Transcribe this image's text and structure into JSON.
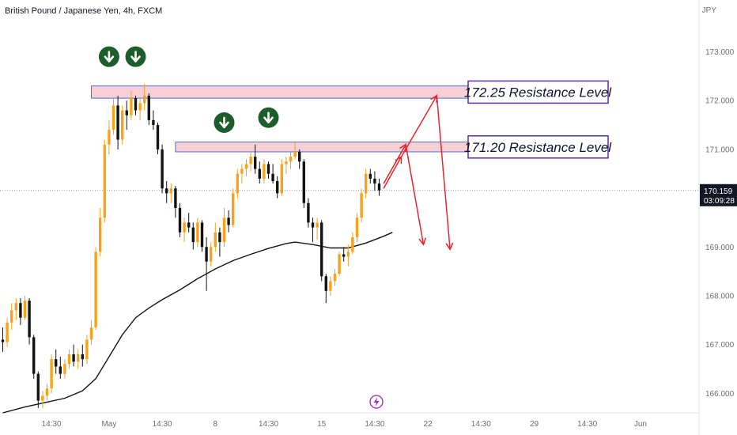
{
  "header": {
    "symbol_title": "British Pound / Japanese Yen, 4h, FXCM",
    "currency": "JPY"
  },
  "last_price": {
    "price": "170.159",
    "countdown": "03:09:28",
    "value": 170.159,
    "color": "#131722"
  },
  "colors": {
    "up": "#f7a21b",
    "down": "#131313",
    "moving_average": "#131313",
    "zone_fill": "#f8c7cf",
    "zone_border": "#4a6fe0",
    "projection": "#e5262d",
    "marker": "#1d5c2b",
    "label_border": "#5b2bb0",
    "lightning": "#9b27c4"
  },
  "chart_data": {
    "type": "candlestick",
    "title": "British Pound / Japanese Yen, 4h, FXCM",
    "ylabel": "JPY",
    "ylim": [
      165.6,
      173.9
    ],
    "y_ticks": [
      "166.000",
      "167.000",
      "168.000",
      "169.000",
      "170.000",
      "171.000",
      "172.000",
      "173.000"
    ],
    "y_tick_values": [
      166,
      167,
      168,
      169,
      170,
      171,
      172,
      173
    ],
    "x_ticks": [
      {
        "label": "14:30",
        "bar": 11
      },
      {
        "label": "May",
        "bar": 24
      },
      {
        "label": "14:30",
        "bar": 36
      },
      {
        "label": "8",
        "bar": 48
      },
      {
        "label": "14:30",
        "bar": 60
      },
      {
        "label": "15",
        "bar": 72
      },
      {
        "label": "14:30",
        "bar": 84
      },
      {
        "label": "22",
        "bar": 96
      },
      {
        "label": "14:30",
        "bar": 108
      },
      {
        "label": "29",
        "bar": 120
      },
      {
        "label": "14:30",
        "bar": 132
      },
      {
        "label": "Jun",
        "bar": 144
      }
    ],
    "candles": [
      [
        167.1,
        167.35,
        166.85,
        167.05
      ],
      [
        167.05,
        167.55,
        166.95,
        167.45
      ],
      [
        167.45,
        167.85,
        167.3,
        167.7
      ],
      [
        167.7,
        167.95,
        167.5,
        167.85
      ],
      [
        167.85,
        167.95,
        167.4,
        167.55
      ],
      [
        167.55,
        168.0,
        167.5,
        167.9
      ],
      [
        167.9,
        167.95,
        167.0,
        167.15
      ],
      [
        167.15,
        167.2,
        166.3,
        166.4
      ],
      [
        166.4,
        166.45,
        165.7,
        165.85
      ],
      [
        165.85,
        166.05,
        165.7,
        165.95
      ],
      [
        165.95,
        166.2,
        165.85,
        166.1
      ],
      [
        166.1,
        166.8,
        166.0,
        166.7
      ],
      [
        166.7,
        166.9,
        166.4,
        166.55
      ],
      [
        166.55,
        166.75,
        166.3,
        166.4
      ],
      [
        166.4,
        166.7,
        166.3,
        166.6
      ],
      [
        166.6,
        166.9,
        166.5,
        166.8
      ],
      [
        166.8,
        167.0,
        166.55,
        166.65
      ],
      [
        166.65,
        166.9,
        166.5,
        166.8
      ],
      [
        166.8,
        167.0,
        166.55,
        166.7
      ],
      [
        166.7,
        167.2,
        166.6,
        167.1
      ],
      [
        167.1,
        167.5,
        167.0,
        167.35
      ],
      [
        167.35,
        169.0,
        167.3,
        168.9
      ],
      [
        168.9,
        169.8,
        168.8,
        169.6
      ],
      [
        169.6,
        171.2,
        169.5,
        171.1
      ],
      [
        171.1,
        171.6,
        170.9,
        171.4
      ],
      [
        171.4,
        172.05,
        171.3,
        171.9
      ],
      [
        171.9,
        172.1,
        171.0,
        171.2
      ],
      [
        171.2,
        171.9,
        171.1,
        171.8
      ],
      [
        171.8,
        172.0,
        171.4,
        171.7
      ],
      [
        171.7,
        172.2,
        171.6,
        172.05
      ],
      [
        172.05,
        172.1,
        171.7,
        171.8
      ],
      [
        171.8,
        172.05,
        171.6,
        171.95
      ],
      [
        171.95,
        172.35,
        171.8,
        172.1
      ],
      [
        172.1,
        172.15,
        171.5,
        171.6
      ],
      [
        171.6,
        171.8,
        171.4,
        171.5
      ],
      [
        171.5,
        171.55,
        170.9,
        171.0
      ],
      [
        171.0,
        171.1,
        170.1,
        170.2
      ],
      [
        170.2,
        170.35,
        169.9,
        170.1
      ],
      [
        170.1,
        170.3,
        169.9,
        170.2
      ],
      [
        170.2,
        170.25,
        169.6,
        169.8
      ],
      [
        169.8,
        169.9,
        169.2,
        169.3
      ],
      [
        169.3,
        169.6,
        169.1,
        169.5
      ],
      [
        169.5,
        169.7,
        169.3,
        169.4
      ],
      [
        169.4,
        169.5,
        168.95,
        169.1
      ],
      [
        169.1,
        169.6,
        169.0,
        169.5
      ],
      [
        169.5,
        169.55,
        168.9,
        169.0
      ],
      [
        169.0,
        169.2,
        168.1,
        168.7
      ],
      [
        168.7,
        169.1,
        168.6,
        169.0
      ],
      [
        169.0,
        169.5,
        168.9,
        169.3
      ],
      [
        169.3,
        169.4,
        168.8,
        169.1
      ],
      [
        169.1,
        169.8,
        169.0,
        169.6
      ],
      [
        169.6,
        169.75,
        169.3,
        169.45
      ],
      [
        169.45,
        170.2,
        169.4,
        170.1
      ],
      [
        170.1,
        170.6,
        170.0,
        170.5
      ],
      [
        170.5,
        170.7,
        170.3,
        170.6
      ],
      [
        170.6,
        170.8,
        170.45,
        170.7
      ],
      [
        170.7,
        170.95,
        170.55,
        170.85
      ],
      [
        170.85,
        171.1,
        170.5,
        170.6
      ],
      [
        170.6,
        170.75,
        170.3,
        170.4
      ],
      [
        170.4,
        170.8,
        170.3,
        170.7
      ],
      [
        170.7,
        170.75,
        170.4,
        170.5
      ],
      [
        170.5,
        170.7,
        170.3,
        170.35
      ],
      [
        170.35,
        170.45,
        170.0,
        170.1
      ],
      [
        170.1,
        170.8,
        170.05,
        170.7
      ],
      [
        170.7,
        170.85,
        170.5,
        170.75
      ],
      [
        170.75,
        170.95,
        170.6,
        170.85
      ],
      [
        170.85,
        171.15,
        170.8,
        170.95
      ],
      [
        170.95,
        171.0,
        170.6,
        170.75
      ],
      [
        170.75,
        170.8,
        169.8,
        169.9
      ],
      [
        169.9,
        170.0,
        169.4,
        169.5
      ],
      [
        169.5,
        169.6,
        169.1,
        169.4
      ],
      [
        169.4,
        169.6,
        169.15,
        169.5
      ],
      [
        169.5,
        169.55,
        168.3,
        168.4
      ],
      [
        168.4,
        168.45,
        167.85,
        168.1
      ],
      [
        168.1,
        168.4,
        168.0,
        168.3
      ],
      [
        168.3,
        168.55,
        168.2,
        168.45
      ],
      [
        168.45,
        168.9,
        168.4,
        168.85
      ],
      [
        168.85,
        169.0,
        168.7,
        168.8
      ],
      [
        168.8,
        169.05,
        168.6,
        168.9
      ],
      [
        168.9,
        169.3,
        168.85,
        169.2
      ],
      [
        169.2,
        169.7,
        169.1,
        169.6
      ],
      [
        169.6,
        170.2,
        169.5,
        170.1
      ],
      [
        170.1,
        170.6,
        170.0,
        170.5
      ],
      [
        170.5,
        170.6,
        170.3,
        170.4
      ],
      [
        170.4,
        170.55,
        170.15,
        170.3
      ],
      [
        170.3,
        170.4,
        170.05,
        170.16
      ]
    ],
    "moving_average": [
      [
        0,
        165.6
      ],
      [
        5,
        165.72
      ],
      [
        10,
        165.82
      ],
      [
        14,
        165.9
      ],
      [
        18,
        166.05
      ],
      [
        21,
        166.3
      ],
      [
        24,
        166.75
      ],
      [
        27,
        167.2
      ],
      [
        30,
        167.55
      ],
      [
        33,
        167.75
      ],
      [
        36,
        167.92
      ],
      [
        40,
        168.12
      ],
      [
        44,
        168.35
      ],
      [
        48,
        168.55
      ],
      [
        52,
        168.72
      ],
      [
        56,
        168.85
      ],
      [
        60,
        168.97
      ],
      [
        64,
        169.07
      ],
      [
        66,
        169.1
      ],
      [
        70,
        169.05
      ],
      [
        74,
        168.98
      ],
      [
        78,
        168.98
      ],
      [
        82,
        169.08
      ],
      [
        86,
        169.22
      ],
      [
        88,
        169.3
      ]
    ],
    "resistance_zones": [
      {
        "low": 172.05,
        "high": 172.3,
        "bar_from": 20,
        "bar_to": 105,
        "label": "172.25 Resistance Level"
      },
      {
        "low": 170.95,
        "high": 171.15,
        "bar_from": 39,
        "bar_to": 105,
        "label": "171.20 Resistance Level"
      }
    ],
    "down_markers": [
      {
        "bar": 24,
        "price": 172.9
      },
      {
        "bar": 30,
        "price": 172.9
      },
      {
        "bar": 50,
        "price": 171.55
      },
      {
        "bar": 60,
        "price": 171.65
      }
    ],
    "projection_paths": [
      [
        [
          86,
          170.3
        ],
        [
          91,
          171.1
        ],
        [
          95,
          169.05
        ]
      ],
      [
        [
          86,
          170.2
        ],
        [
          90,
          170.85
        ],
        [
          98,
          172.1
        ],
        [
          101,
          168.95
        ]
      ]
    ]
  }
}
